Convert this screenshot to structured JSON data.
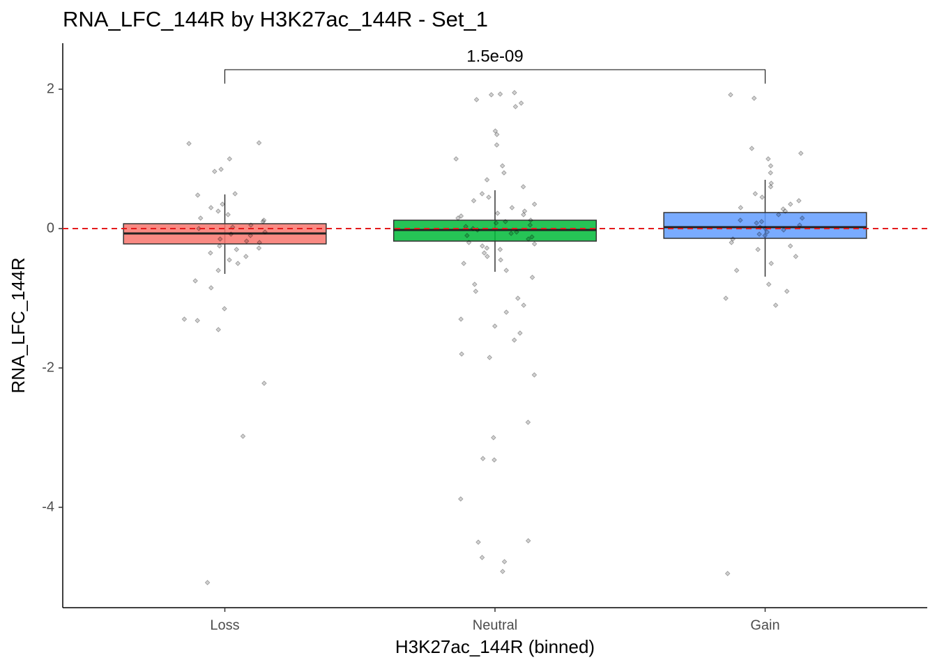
{
  "chart_data": {
    "type": "box",
    "title": "RNA_LFC_144R by H3K27ac_144R - Set_1",
    "x_label": "H3K27ac_144R (binned)",
    "y_label": "RNA_LFC_144R",
    "categories": [
      "Loss",
      "Neutral",
      "Gain"
    ],
    "ylim": [
      -5.44,
      2.66
    ],
    "yticks": [
      -4,
      -2,
      0,
      2
    ],
    "hline": {
      "value": 0,
      "color": "#e41a1c"
    },
    "point_color": "#000000",
    "boxes": [
      {
        "color": "#F8766D",
        "q1": -0.22,
        "median": -0.07,
        "q3": 0.07,
        "whisker_low": -0.65,
        "whisker_high": 0.49,
        "points": [
          1.23,
          1.22,
          1.0,
          0.82,
          0.85,
          0.5,
          0.48,
          0.3,
          0.2,
          0.1,
          0.05,
          0,
          -0.05,
          -0.1,
          -0.15,
          -0.2,
          -0.25,
          -0.3,
          -0.35,
          -0.4,
          -0.45,
          -0.5,
          -0.6,
          -0.75,
          -0.85,
          -1.15,
          -1.3,
          -1.32,
          -1.45,
          -2.22,
          -2.98,
          -5.08,
          0.25,
          0.15,
          -0.08,
          0.12,
          -0.28,
          0.35,
          -0.18,
          0.02
        ]
      },
      {
        "color": "#00BA38",
        "q1": -0.18,
        "median": -0.02,
        "q3": 0.12,
        "whisker_low": -0.62,
        "whisker_high": 0.55,
        "points": [
          1.95,
          1.93,
          1.92,
          1.85,
          1.8,
          1.75,
          1.4,
          1.35,
          1.2,
          1.0,
          0.9,
          0.8,
          0.7,
          0.6,
          0.5,
          0.45,
          0.4,
          0.35,
          0.3,
          0.25,
          0.2,
          0.15,
          0.1,
          0.05,
          0,
          -0.05,
          -0.1,
          -0.15,
          -0.2,
          -0.25,
          -0.3,
          -0.35,
          -0.4,
          -0.45,
          -0.5,
          -0.6,
          -0.7,
          -0.8,
          -0.9,
          -1.0,
          -1.1,
          -1.2,
          -1.3,
          -1.4,
          -1.5,
          -1.6,
          -1.8,
          -1.85,
          -2.1,
          -2.78,
          -3.0,
          -3.3,
          -3.32,
          -3.88,
          -4.48,
          -4.5,
          -4.72,
          -4.78,
          -4.92,
          0.08,
          -0.02,
          0.12,
          -0.12,
          0.03,
          -0.07,
          0.18,
          -0.22,
          0.22,
          -0.28
        ]
      },
      {
        "color": "#619CFF",
        "q1": -0.14,
        "median": 0.02,
        "q3": 0.23,
        "whisker_low": -0.69,
        "whisker_high": 0.7,
        "points": [
          1.92,
          1.87,
          1.15,
          1.08,
          1.0,
          0.9,
          0.8,
          0.65,
          0.6,
          0.5,
          0.4,
          0.35,
          0.3,
          0.25,
          0.2,
          0.15,
          0.1,
          0.05,
          0,
          -0.05,
          -0.1,
          -0.15,
          -0.2,
          -0.3,
          -0.4,
          -0.5,
          -0.6,
          -0.8,
          -0.9,
          -1.0,
          -1.1,
          -4.95,
          0.08,
          0.12,
          -0.02,
          0.28,
          -0.25,
          0.45,
          0.02,
          -0.08
        ]
      }
    ],
    "annotations": [
      {
        "label": "1.5e-09",
        "from": 0,
        "to": 2,
        "y": 2.28
      }
    ]
  }
}
